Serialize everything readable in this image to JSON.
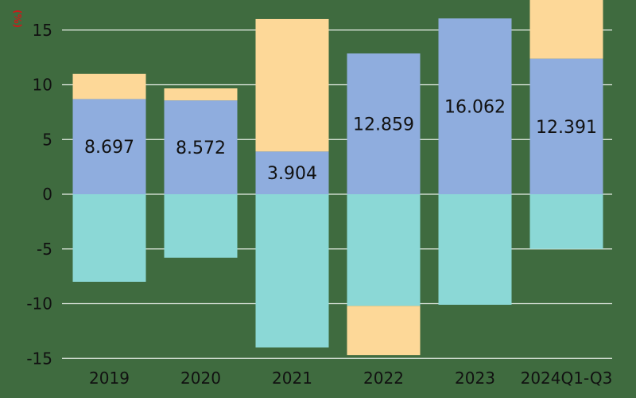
{
  "chart_data": {
    "type": "bar",
    "stacked": true,
    "categories": [
      "2019",
      "2020",
      "2021",
      "2022",
      "2023",
      "2024Q1-Q3"
    ],
    "series": [
      {
        "color": "#8fadde",
        "values": [
          8.697,
          8.572,
          3.904,
          12.859,
          16.062,
          12.391
        ]
      },
      {
        "color": "#fdd898",
        "values": [
          2.3,
          1.1,
          12.1,
          0,
          0,
          5.8
        ]
      },
      {
        "color": "#8bd8d6",
        "values": [
          -8.0,
          -5.8,
          -14.0,
          -10.2,
          -10.1,
          -5.0
        ]
      },
      {
        "color": "#fdd898",
        "values": [
          0,
          0,
          0,
          -4.5,
          0,
          0
        ]
      }
    ],
    "data_labels": [
      "8.697",
      "8.572",
      "3.904",
      "12.859",
      "16.062",
      "12.391"
    ],
    "yticks": [
      "15",
      "10",
      "5",
      "0",
      "-5",
      "-10",
      "-15"
    ],
    "ylim": [
      -15,
      17.5
    ],
    "grid": true,
    "unit_label": "(%)"
  },
  "colors": {
    "background": "#3f6b3f",
    "gridline": "#e8eee8",
    "text": "#111111",
    "unit_text": "#cc1a1a"
  }
}
